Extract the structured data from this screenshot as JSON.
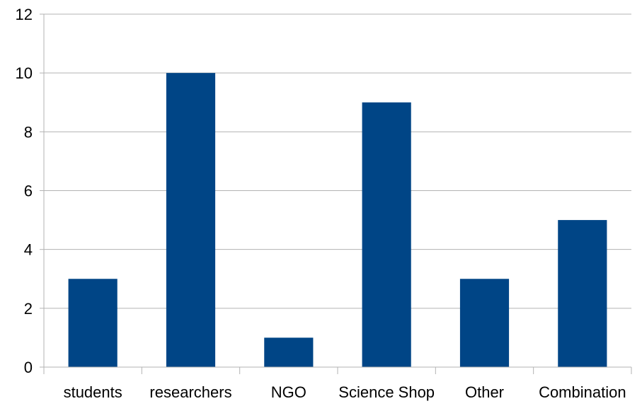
{
  "chart_data": {
    "type": "bar",
    "title": "",
    "xlabel": "",
    "ylabel": "",
    "categories": [
      "students",
      "researchers",
      "NGO",
      "Science Shop",
      "Other",
      "Combination"
    ],
    "values": [
      3,
      10,
      1,
      9,
      3,
      5
    ],
    "ylim": [
      0,
      12
    ],
    "yticks": [
      0,
      2,
      4,
      6,
      8,
      10,
      12
    ],
    "grid": true,
    "legend": "none",
    "bar_color": "#004586",
    "grid_color": "#b3b3b3",
    "axis_color": "#b3b3b3"
  }
}
